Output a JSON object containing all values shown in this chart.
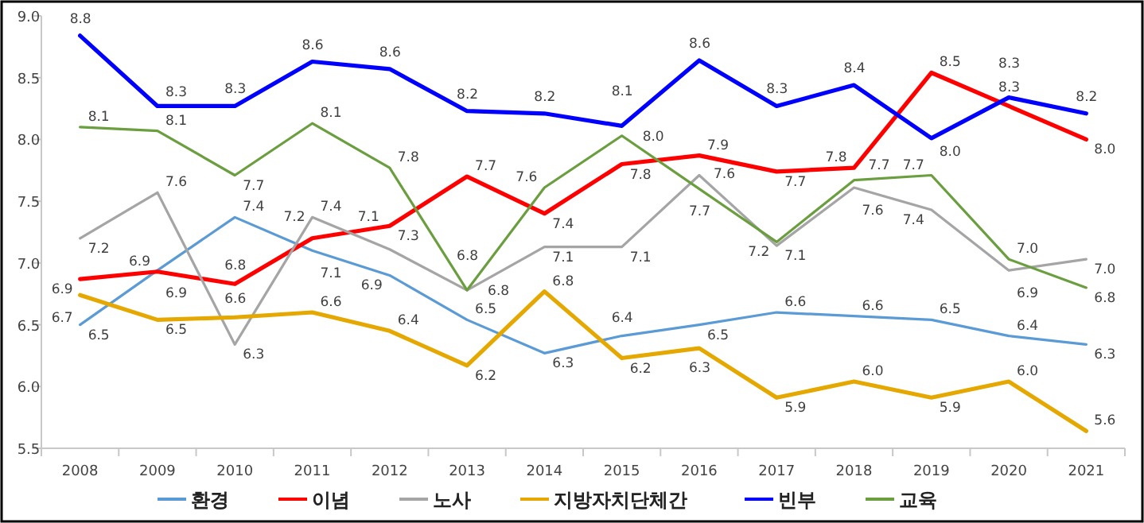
{
  "chart_data": {
    "type": "line",
    "categories": [
      "2008",
      "2009",
      "2010",
      "2011",
      "2012",
      "2013",
      "2014",
      "2015",
      "2016",
      "2017",
      "2018",
      "2019",
      "2020",
      "2021"
    ],
    "ylim": [
      5.5,
      9.0
    ],
    "yticks": [
      5.5,
      {
        "value": 6,
        "label": "6.0"
      },
      6.5,
      {
        "value": 7,
        "label": "7.0"
      },
      7.5,
      {
        "value": 8,
        "label": "8.0"
      },
      8.5,
      {
        "value": 9,
        "label": "9.0"
      }
    ],
    "grid": false,
    "legend": "bottom",
    "marker": "none",
    "line_style": "solid",
    "series": [
      {
        "name": "환경",
        "color": "#5b9bd5",
        "values": [
          6.5,
          6.94,
          7.37,
          7.1,
          6.9,
          6.54,
          6.27,
          6.41,
          6.5,
          6.6,
          6.57,
          6.54,
          6.41,
          6.34
        ],
        "value_labels": [
          "6.5",
          "6.9",
          "7.4",
          "7.1",
          "6.9",
          "6.5",
          "6.3",
          "6.4",
          "6.5",
          "6.6",
          "6.6",
          "6.5",
          "6.4",
          "6.3"
        ]
      },
      {
        "name": "이념",
        "color": "#ff0000",
        "values": [
          6.87,
          6.93,
          6.83,
          7.2,
          7.3,
          7.7,
          7.4,
          7.8,
          7.87,
          7.74,
          7.77,
          8.54,
          8.27,
          8.0
        ],
        "value_labels": [
          "6.9",
          "6.9",
          "6.8",
          "7.2",
          "7.3",
          "7.7",
          "7.4",
          "7.8",
          "7.9",
          "7.7",
          "7.8",
          "8.5",
          "8.3",
          "8.0"
        ]
      },
      {
        "name": "노사",
        "color": "#a5a5a5",
        "values": [
          7.2,
          7.57,
          6.34,
          7.37,
          7.11,
          6.78,
          7.13,
          7.13,
          7.71,
          7.14,
          7.61,
          7.43,
          6.94,
          7.03
        ],
        "value_labels": [
          "7.2",
          "7.6",
          "6.3",
          "7.4",
          "7.1",
          "6.8",
          "7.1",
          "7.1",
          "7.7",
          "7.1",
          "7.6",
          "7.4",
          "6.9",
          "7.0"
        ]
      },
      {
        "name": "지방자치단체간",
        "color": "#e5a800",
        "values": [
          6.74,
          6.54,
          6.56,
          6.6,
          6.45,
          6.17,
          6.77,
          6.23,
          6.31,
          5.91,
          6.04,
          5.91,
          6.04,
          5.64
        ],
        "value_labels": [
          "6.7",
          "6.5",
          "6.6",
          "6.6",
          "6.4",
          "6.2",
          "6.8",
          "6.2",
          "6.3",
          "5.9",
          "6.0",
          "5.9",
          "6.0",
          "5.6"
        ]
      },
      {
        "name": "빈부",
        "color": "#0000ff",
        "values": [
          8.84,
          8.27,
          8.27,
          8.63,
          8.57,
          8.23,
          8.21,
          8.11,
          8.64,
          8.27,
          8.44,
          8.01,
          8.34,
          8.21
        ],
        "value_labels": [
          "8.8",
          "8.3",
          "8.3",
          "8.6",
          "8.6",
          "8.2",
          "8.2",
          "8.1",
          "8.6",
          "8.3",
          "8.4",
          "8.0",
          "8.3",
          "8.2"
        ]
      },
      {
        "name": "교육",
        "color": "#6a9e3f",
        "values": [
          8.1,
          8.07,
          7.71,
          8.13,
          7.77,
          6.78,
          7.61,
          8.03,
          7.6,
          7.17,
          7.67,
          7.71,
          7.03,
          6.8
        ],
        "value_labels": [
          "8.1",
          "8.1",
          "7.7",
          "8.1",
          "7.8",
          "6.8",
          "7.6",
          "8.0",
          "7.6",
          "7.2",
          "7.7",
          "7.7",
          "7.0",
          "6.8"
        ]
      }
    ]
  }
}
